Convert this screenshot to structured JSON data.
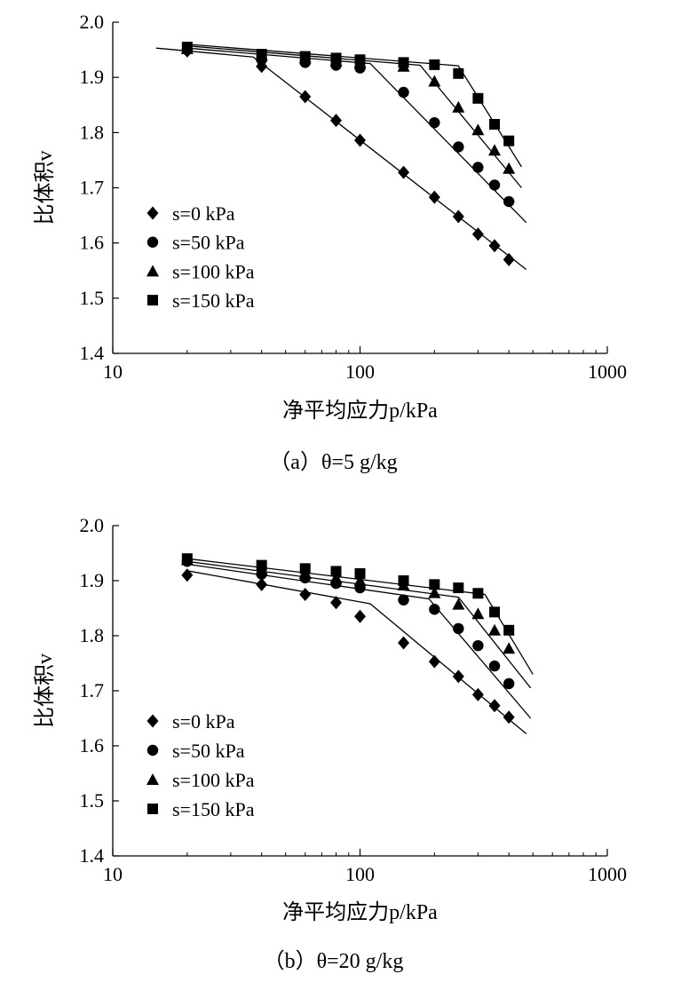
{
  "chart_data": [
    {
      "type": "scatter",
      "caption": "（a）θ=5 g/kg",
      "xlabel": "净平均应力p/kPa",
      "ylabel": "比体积v",
      "xscale": "log",
      "xlim": [
        10,
        1000
      ],
      "ylim": [
        1.4,
        2.0
      ],
      "xticks": [
        "10",
        "100",
        "1000"
      ],
      "yticks": [
        "2.0",
        "1.9",
        "1.8",
        "1.7",
        "1.6",
        "1.5",
        "1.4"
      ],
      "legend_position": "lower-left",
      "series": [
        {
          "name": "s=0 kPa",
          "marker": "diamond",
          "points": [
            [
              20,
              1.948
            ],
            [
              40,
              1.92
            ],
            [
              60,
              1.865
            ],
            [
              80,
              1.822
            ],
            [
              100,
              1.786
            ],
            [
              150,
              1.728
            ],
            [
              200,
              1.683
            ],
            [
              250,
              1.648
            ],
            [
              300,
              1.616
            ],
            [
              350,
              1.595
            ],
            [
              400,
              1.57
            ]
          ],
          "fit_line": [
            [
              15,
              1.953
            ],
            [
              37,
              1.937
            ],
            [
              470,
              1.552
            ]
          ]
        },
        {
          "name": "s=50 kPa",
          "marker": "circle",
          "points": [
            [
              20,
              1.95
            ],
            [
              40,
              1.932
            ],
            [
              60,
              1.927
            ],
            [
              80,
              1.922
            ],
            [
              100,
              1.917
            ],
            [
              150,
              1.873
            ],
            [
              200,
              1.818
            ],
            [
              250,
              1.774
            ],
            [
              300,
              1.737
            ],
            [
              350,
              1.705
            ],
            [
              400,
              1.675
            ]
          ],
          "fit_line": [
            [
              20,
              1.953
            ],
            [
              110,
              1.925
            ],
            [
              470,
              1.637
            ]
          ]
        },
        {
          "name": "s=100 kPa",
          "marker": "triangle",
          "points": [
            [
              20,
              1.952
            ],
            [
              40,
              1.94
            ],
            [
              60,
              1.935
            ],
            [
              80,
              1.93
            ],
            [
              100,
              1.927
            ],
            [
              150,
              1.92
            ],
            [
              200,
              1.893
            ],
            [
              250,
              1.846
            ],
            [
              300,
              1.805
            ],
            [
              350,
              1.768
            ],
            [
              400,
              1.735
            ]
          ],
          "fit_line": [
            [
              20,
              1.957
            ],
            [
              175,
              1.922
            ],
            [
              450,
              1.7
            ]
          ]
        },
        {
          "name": "s=150 kPa",
          "marker": "square",
          "points": [
            [
              20,
              1.955
            ],
            [
              40,
              1.942
            ],
            [
              60,
              1.938
            ],
            [
              80,
              1.935
            ],
            [
              100,
              1.932
            ],
            [
              150,
              1.927
            ],
            [
              200,
              1.923
            ],
            [
              250,
              1.907
            ],
            [
              300,
              1.862
            ],
            [
              350,
              1.815
            ],
            [
              400,
              1.785
            ]
          ],
          "fit_line": [
            [
              20,
              1.96
            ],
            [
              250,
              1.921
            ],
            [
              450,
              1.738
            ]
          ]
        }
      ]
    },
    {
      "type": "scatter",
      "caption": "（b）θ=20 g/kg",
      "xlabel": "净平均应力p/kPa",
      "ylabel": "比体积v",
      "xscale": "log",
      "xlim": [
        10,
        1000
      ],
      "ylim": [
        1.4,
        2.0
      ],
      "xticks": [
        "10",
        "100",
        "1000"
      ],
      "yticks": [
        "2.0",
        "1.9",
        "1.8",
        "1.7",
        "1.6",
        "1.5",
        "1.4"
      ],
      "legend_position": "lower-left",
      "series": [
        {
          "name": "s=0 kPa",
          "marker": "diamond",
          "points": [
            [
              20,
              1.91
            ],
            [
              40,
              1.893
            ],
            [
              60,
              1.875
            ],
            [
              80,
              1.86
            ],
            [
              100,
              1.835
            ],
            [
              150,
              1.787
            ],
            [
              200,
              1.753
            ],
            [
              250,
              1.726
            ],
            [
              300,
              1.693
            ],
            [
              350,
              1.673
            ],
            [
              400,
              1.652
            ]
          ],
          "fit_line": [
            [
              20,
              1.918
            ],
            [
              110,
              1.858
            ],
            [
              470,
              1.622
            ]
          ]
        },
        {
          "name": "s=50 kPa",
          "marker": "circle",
          "points": [
            [
              20,
              1.935
            ],
            [
              40,
              1.912
            ],
            [
              60,
              1.905
            ],
            [
              80,
              1.895
            ],
            [
              100,
              1.887
            ],
            [
              150,
              1.865
            ],
            [
              200,
              1.848
            ],
            [
              250,
              1.813
            ],
            [
              300,
              1.782
            ],
            [
              350,
              1.745
            ],
            [
              400,
              1.713
            ]
          ],
          "fit_line": [
            [
              20,
              1.93
            ],
            [
              190,
              1.867
            ],
            [
              490,
              1.65
            ]
          ]
        },
        {
          "name": "s=100 kPa",
          "marker": "triangle",
          "points": [
            [
              20,
              1.938
            ],
            [
              40,
              1.92
            ],
            [
              60,
              1.913
            ],
            [
              80,
              1.905
            ],
            [
              100,
              1.9
            ],
            [
              150,
              1.892
            ],
            [
              200,
              1.878
            ],
            [
              250,
              1.857
            ],
            [
              300,
              1.84
            ],
            [
              350,
              1.81
            ],
            [
              400,
              1.777
            ]
          ],
          "fit_line": [
            [
              20,
              1.935
            ],
            [
              250,
              1.87
            ],
            [
              490,
              1.705
            ]
          ]
        },
        {
          "name": "s=150 kPa",
          "marker": "square",
          "points": [
            [
              20,
              1.94
            ],
            [
              40,
              1.928
            ],
            [
              60,
              1.922
            ],
            [
              80,
              1.917
            ],
            [
              100,
              1.913
            ],
            [
              150,
              1.9
            ],
            [
              200,
              1.893
            ],
            [
              250,
              1.887
            ],
            [
              300,
              1.877
            ],
            [
              350,
              1.843
            ],
            [
              400,
              1.81
            ]
          ],
          "fit_line": [
            [
              20,
              1.94
            ],
            [
              320,
              1.875
            ],
            [
              500,
              1.73
            ]
          ]
        }
      ]
    }
  ]
}
